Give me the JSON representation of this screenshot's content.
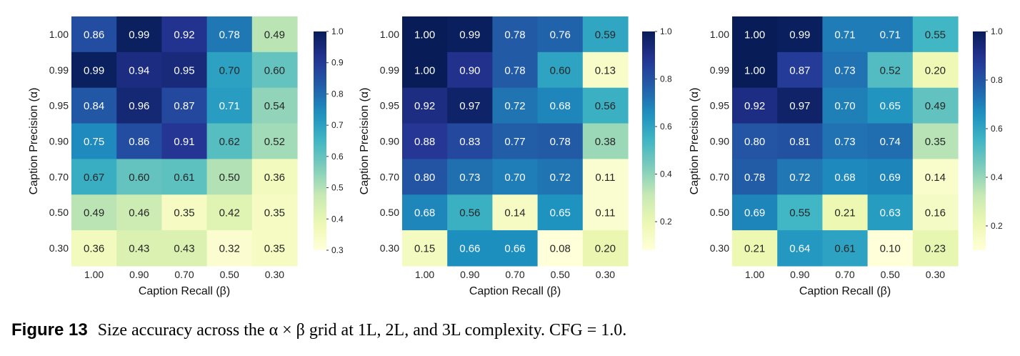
{
  "chart_data": [
    {
      "type": "heatmap",
      "xlabel": "Caption Recall (β)",
      "ylabel": "Caption Precision (α)",
      "x_categories": [
        "1.00",
        "0.90",
        "0.70",
        "0.50",
        "0.30"
      ],
      "y_categories": [
        "1.00",
        "0.99",
        "0.95",
        "0.90",
        "0.70",
        "0.50",
        "0.30"
      ],
      "values": [
        [
          0.86,
          0.99,
          0.92,
          0.78,
          0.49
        ],
        [
          0.99,
          0.94,
          0.95,
          0.7,
          0.6
        ],
        [
          0.84,
          0.96,
          0.87,
          0.71,
          0.54
        ],
        [
          0.75,
          0.86,
          0.91,
          0.62,
          0.52
        ],
        [
          0.67,
          0.6,
          0.61,
          0.5,
          0.36
        ],
        [
          0.49,
          0.46,
          0.35,
          0.42,
          0.35
        ],
        [
          0.36,
          0.43,
          0.43,
          0.32,
          0.35
        ]
      ],
      "colorbar": {
        "range": [
          0.3,
          1.0
        ],
        "ticks": [
          "1.0",
          "0.9",
          "0.8",
          "0.7",
          "0.6",
          "0.5",
          "0.4",
          "0.3"
        ],
        "tick_values": [
          1.0,
          0.9,
          0.8,
          0.7,
          0.6,
          0.5,
          0.4,
          0.3
        ]
      },
      "colormap": "YlGnBu"
    },
    {
      "type": "heatmap",
      "xlabel": "Caption Recall (β)",
      "ylabel": "Caption Precision (α)",
      "x_categories": [
        "1.00",
        "0.90",
        "0.70",
        "0.50",
        "0.30"
      ],
      "y_categories": [
        "1.00",
        "0.99",
        "0.95",
        "0.90",
        "0.70",
        "0.50",
        "0.30"
      ],
      "values": [
        [
          1.0,
          0.99,
          0.78,
          0.76,
          0.59
        ],
        [
          1.0,
          0.9,
          0.78,
          0.6,
          0.13
        ],
        [
          0.92,
          0.97,
          0.72,
          0.68,
          0.56
        ],
        [
          0.88,
          0.83,
          0.77,
          0.78,
          0.38
        ],
        [
          0.8,
          0.73,
          0.7,
          0.72,
          0.11
        ],
        [
          0.68,
          0.56,
          0.14,
          0.65,
          0.11
        ],
        [
          0.15,
          0.66,
          0.66,
          0.08,
          0.2
        ]
      ],
      "colorbar": {
        "range": [
          0.08,
          1.0
        ],
        "ticks": [
          "1.0",
          "0.8",
          "0.6",
          "0.4",
          "0.2"
        ],
        "tick_values": [
          1.0,
          0.8,
          0.6,
          0.4,
          0.2
        ]
      },
      "colormap": "YlGnBu"
    },
    {
      "type": "heatmap",
      "xlabel": "Caption Recall (β)",
      "ylabel": "Caption Precision (α)",
      "x_categories": [
        "1.00",
        "0.90",
        "0.70",
        "0.50",
        "0.30"
      ],
      "y_categories": [
        "1.00",
        "0.99",
        "0.95",
        "0.90",
        "0.70",
        "0.50",
        "0.30"
      ],
      "values": [
        [
          1.0,
          0.99,
          0.71,
          0.71,
          0.55
        ],
        [
          1.0,
          0.87,
          0.73,
          0.52,
          0.2
        ],
        [
          0.92,
          0.97,
          0.7,
          0.65,
          0.49
        ],
        [
          0.8,
          0.81,
          0.73,
          0.74,
          0.35
        ],
        [
          0.78,
          0.72,
          0.68,
          0.69,
          0.14
        ],
        [
          0.69,
          0.55,
          0.21,
          0.63,
          0.16
        ],
        [
          0.21,
          0.64,
          0.61,
          0.1,
          0.23
        ]
      ],
      "colorbar": {
        "range": [
          0.1,
          1.0
        ],
        "ticks": [
          "1.0",
          "0.8",
          "0.6",
          "0.4",
          "0.2"
        ],
        "tick_values": [
          1.0,
          0.8,
          0.6,
          0.4,
          0.2
        ]
      },
      "colormap": "YlGnBu"
    }
  ],
  "caption": {
    "label": "Figure 13",
    "text": "Size accuracy across the α × β grid at 1L, 2L, and 3L complexity. CFG = 1.0."
  }
}
